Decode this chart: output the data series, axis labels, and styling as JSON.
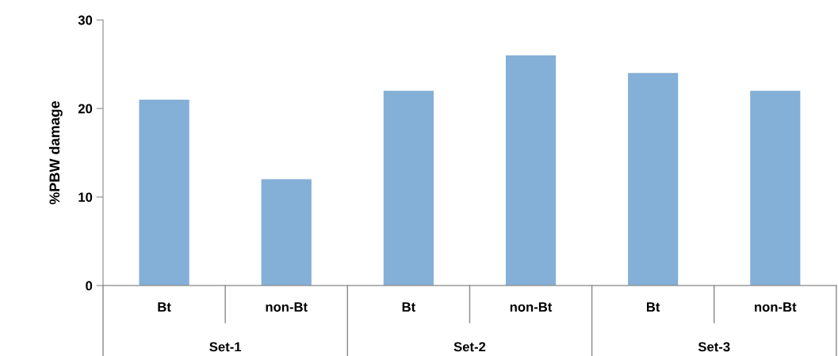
{
  "chart_data": {
    "type": "bar",
    "ylabel": "%PBW damage",
    "categories": [
      "Bt",
      "non-Bt",
      "Bt",
      "non-Bt",
      "Bt",
      "non-Bt"
    ],
    "values": [
      21,
      12,
      22,
      26,
      24,
      22
    ],
    "color": "#84afd7",
    "annotations": [
      "Set-1",
      "Set-2",
      "Set-3"
    ],
    "ylim": [
      0,
      30
    ],
    "yticks": [
      0,
      10,
      20,
      30
    ],
    "grid": false,
    "legend": false
  }
}
